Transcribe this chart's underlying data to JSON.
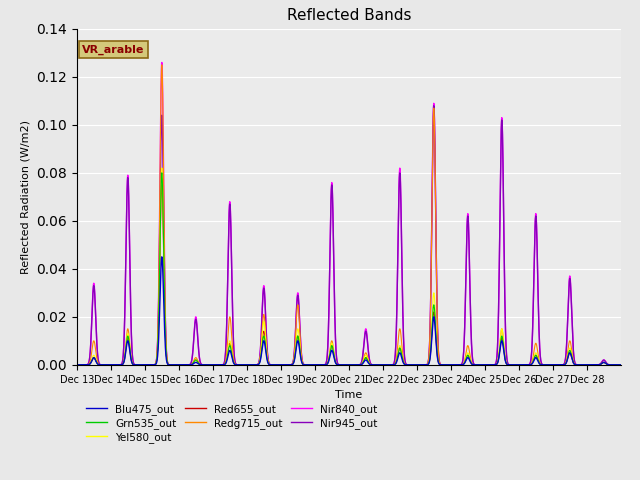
{
  "title": "Reflected Bands",
  "xlabel": "Time",
  "ylabel": "Reflected Radiation (W/m2)",
  "ylim": [
    0,
    0.14
  ],
  "annotation_text": "VR_arable",
  "annotation_box_color": "#d4c87a",
  "annotation_text_color": "#8b0000",
  "background_color": "#e8e8e8",
  "plot_bg_color": "#ebebeb",
  "xtick_labels": [
    "Dec 13",
    "Dec 14",
    "Dec 15",
    "Dec 16",
    "Dec 17",
    "Dec 18",
    "Dec 19",
    "Dec 20",
    "Dec 21",
    "Dec 22",
    "Dec 23",
    "Dec 24",
    "Dec 25",
    "Dec 26",
    "Dec 27",
    "Dec 28"
  ],
  "series": [
    {
      "name": "Blu475_out",
      "color": "#0000cd",
      "lw": 1.0
    },
    {
      "name": "Grn535_out",
      "color": "#00cc00",
      "lw": 0.8
    },
    {
      "name": "Yel580_out",
      "color": "#ffff00",
      "lw": 0.8
    },
    {
      "name": "Red655_out",
      "color": "#cc0000",
      "lw": 0.8
    },
    {
      "name": "Redg715_out",
      "color": "#ff8800",
      "lw": 0.8
    },
    {
      "name": "Nir840_out",
      "color": "#ff00ff",
      "lw": 1.0
    },
    {
      "name": "Nir945_out",
      "color": "#8800bb",
      "lw": 1.0
    }
  ],
  "days": 16,
  "peak_nir840": [
    0.034,
    0.079,
    0.126,
    0.02,
    0.068,
    0.033,
    0.03,
    0.076,
    0.015,
    0.082,
    0.109,
    0.063,
    0.103,
    0.063,
    0.037,
    0.002
  ],
  "peak_nir945": [
    0.033,
    0.078,
    0.104,
    0.019,
    0.067,
    0.032,
    0.029,
    0.075,
    0.014,
    0.08,
    0.108,
    0.062,
    0.102,
    0.062,
    0.036,
    0.002
  ],
  "peak_redg715": [
    0.01,
    0.015,
    0.125,
    0.003,
    0.02,
    0.021,
    0.025,
    0.01,
    0.005,
    0.015,
    0.107,
    0.008,
    0.015,
    0.009,
    0.01,
    0.001
  ],
  "peak_blu475": [
    0.003,
    0.01,
    0.045,
    0.001,
    0.006,
    0.01,
    0.01,
    0.006,
    0.002,
    0.005,
    0.02,
    0.003,
    0.01,
    0.003,
    0.005,
    0.001
  ],
  "peak_grn535": [
    0.003,
    0.012,
    0.08,
    0.002,
    0.008,
    0.012,
    0.012,
    0.008,
    0.003,
    0.007,
    0.025,
    0.004,
    0.012,
    0.004,
    0.006,
    0.001
  ],
  "peak_yel580": [
    0.004,
    0.013,
    0.082,
    0.002,
    0.01,
    0.018,
    0.015,
    0.009,
    0.004,
    0.008,
    0.03,
    0.005,
    0.015,
    0.005,
    0.007,
    0.001
  ],
  "peak_red655": [
    0.003,
    0.011,
    0.075,
    0.002,
    0.009,
    0.014,
    0.012,
    0.008,
    0.003,
    0.007,
    0.022,
    0.004,
    0.011,
    0.004,
    0.005,
    0.001
  ]
}
